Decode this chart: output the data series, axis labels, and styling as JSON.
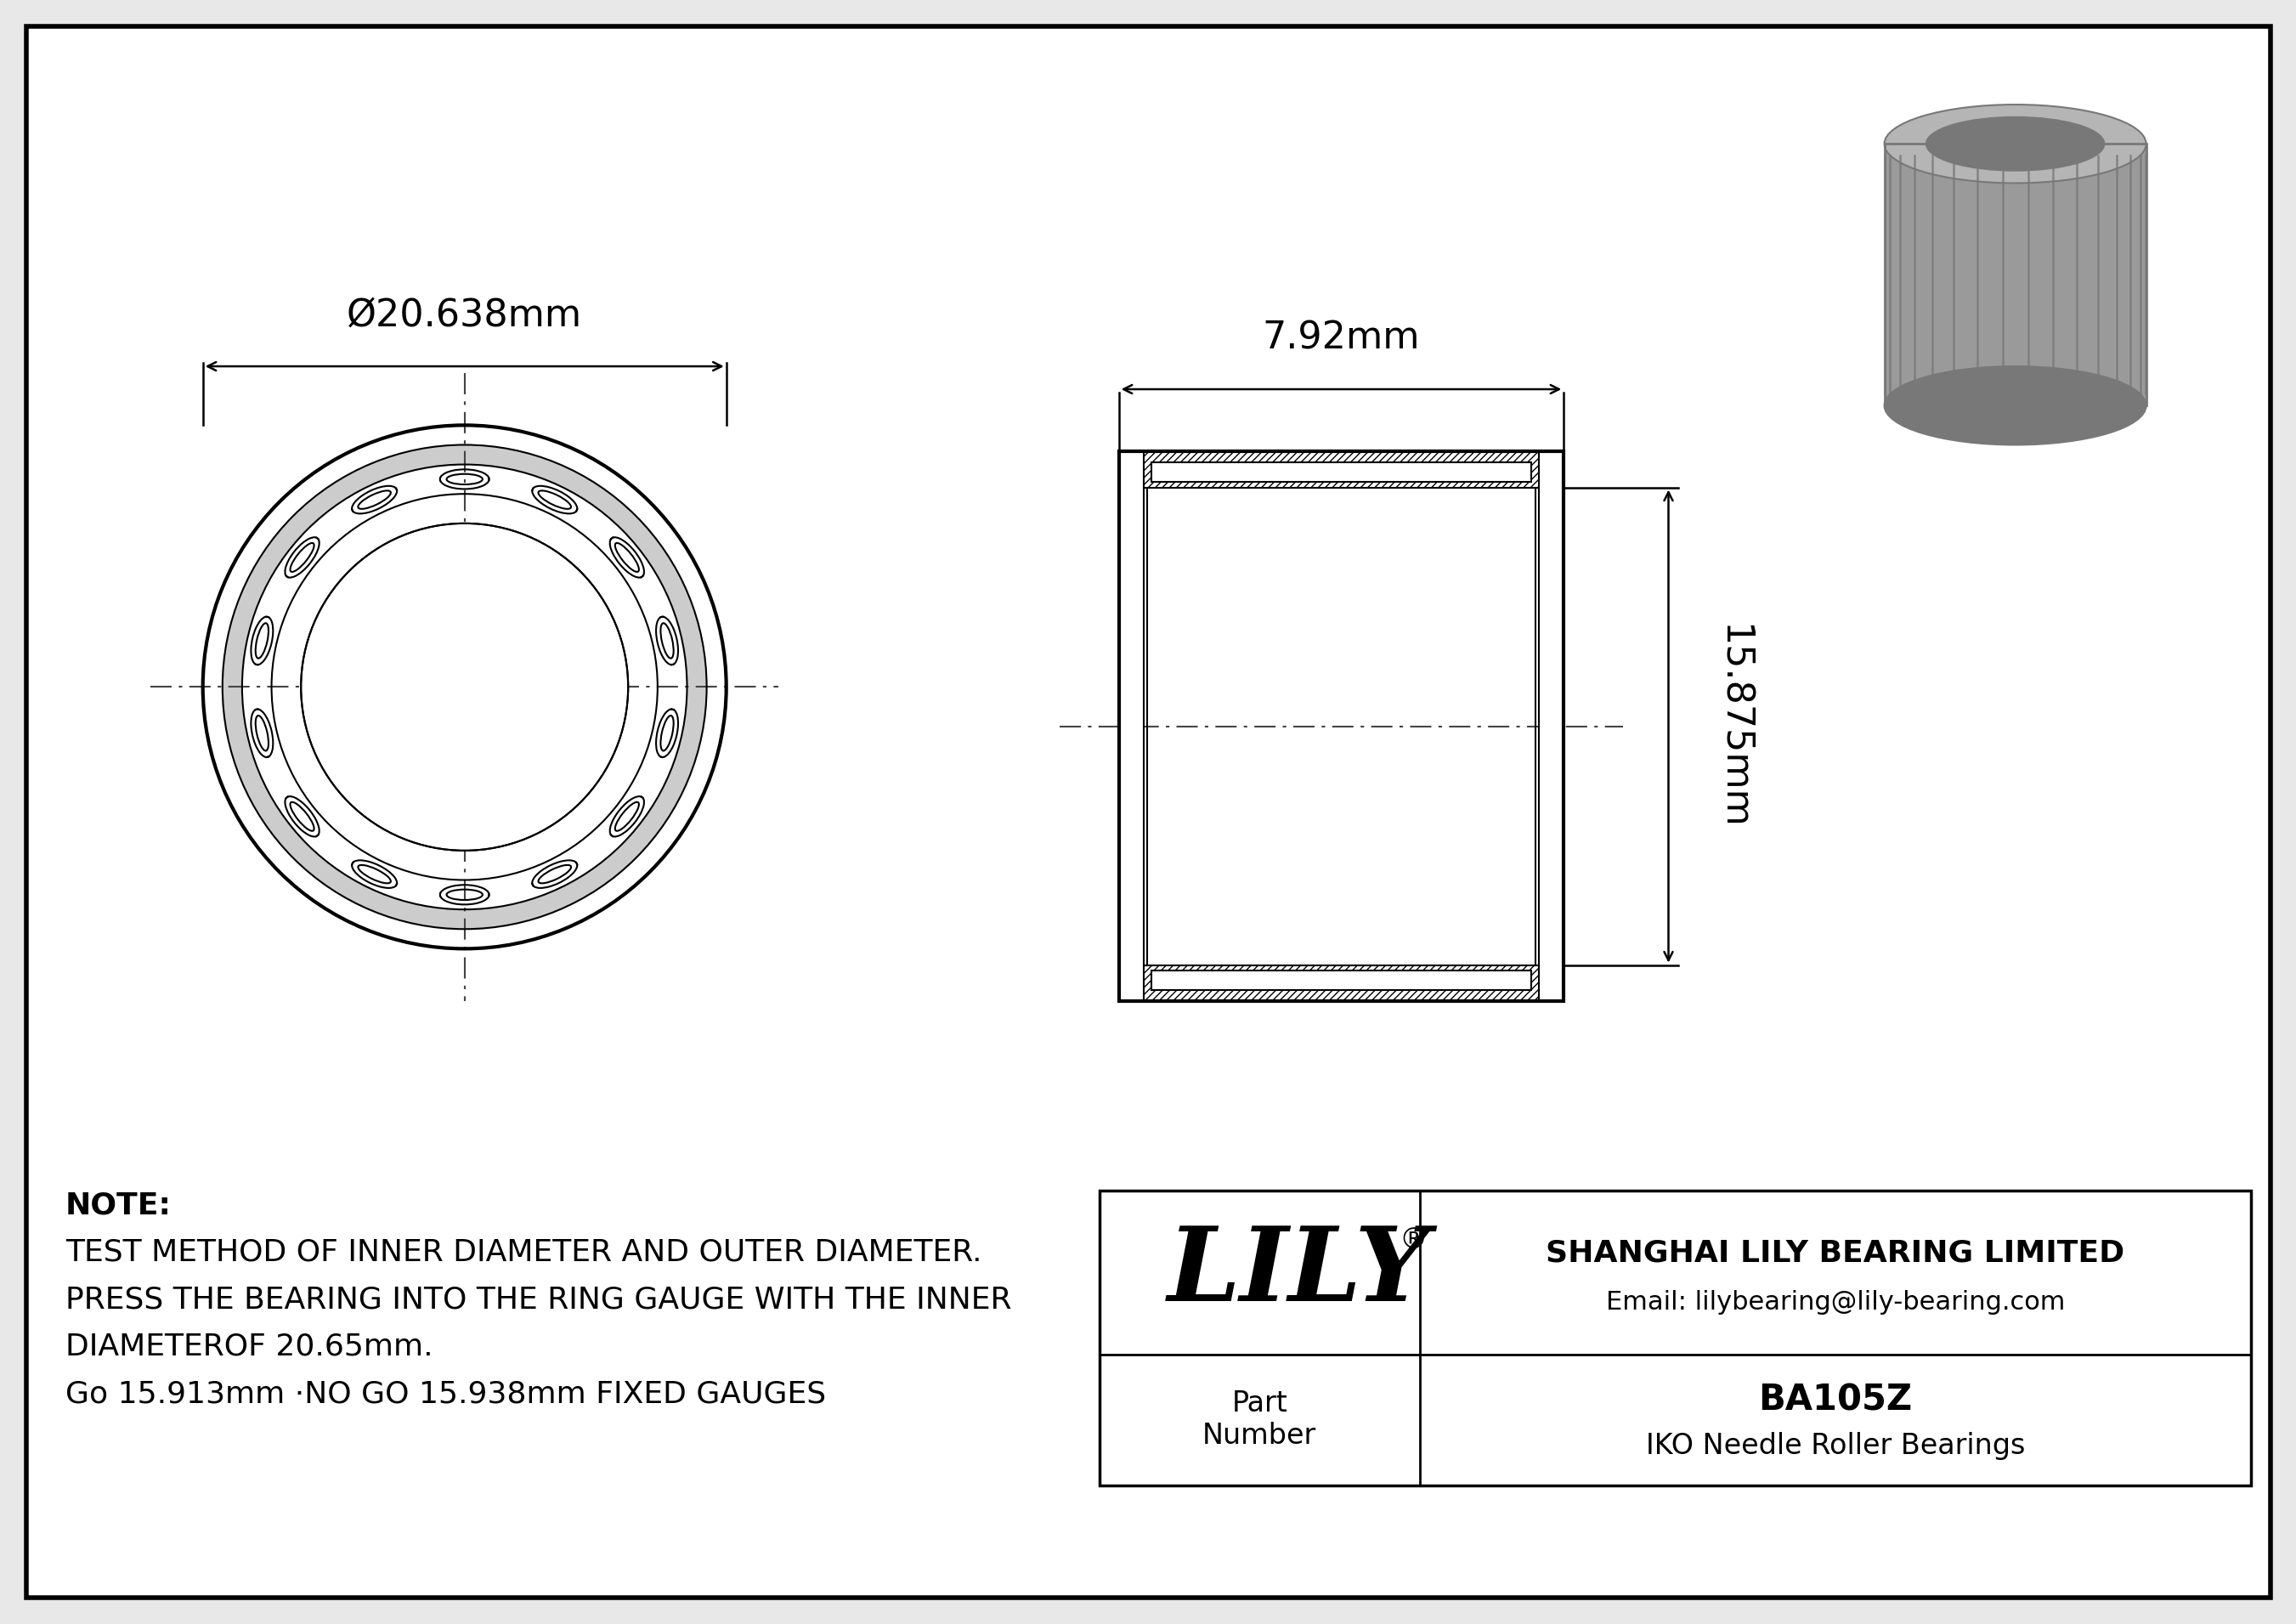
{
  "bg_color": "#e8e8e8",
  "line_color": "#000000",
  "white": "#ffffff",
  "outer_diameter_label": "Ø20.638mm",
  "width_label": "7.92mm",
  "height_label": "15.875mm",
  "note_line1": "NOTE:",
  "note_line2": "TEST METHOD OF INNER DIAMETER AND OUTER DIAMETER.",
  "note_line3": "PRESS THE BEARING INTO THE RING GAUGE WITH THE INNER",
  "note_line4": "DIAMETEROF 20.65mm.",
  "note_line5": "Go 15.913mm ·NO GO 15.938mm FIXED GAUGES",
  "company_name": "SHANGHAI LILY BEARING LIMITED",
  "company_email": "Email: lilybearing@lily-bearing.com",
  "lily_logo": "LILY",
  "part_label": "Part\nNumber",
  "part_number": "BA105Z",
  "part_type": "IKO Needle Roller Bearings",
  "gray_3d": "#9a9a9a",
  "gray_3d_light": "#b5b5b5",
  "gray_3d_dark": "#787878"
}
